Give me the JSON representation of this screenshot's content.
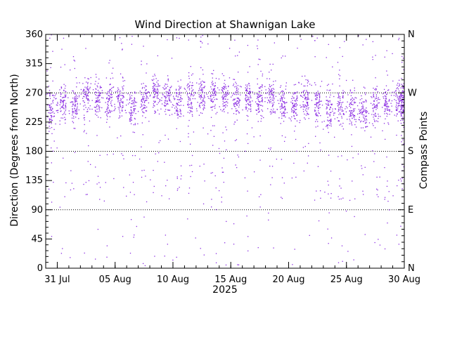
{
  "chart_data": {
    "type": "scatter",
    "title": "Wind Direction at Shawnigan Lake",
    "ylabel": "Direction (Degrees from North)",
    "y2label": "Compass Points",
    "xlabel_year": "2025",
    "x_range": [
      "2025-07-30",
      "2025-08-30"
    ],
    "ylim": [
      0,
      360
    ],
    "y_ticks": [
      "0",
      "45",
      "90",
      "135",
      "180",
      "225",
      "270",
      "315",
      "360"
    ],
    "x_ticks": [
      {
        "date": "2025-07-31",
        "label": "31 Jul"
      },
      {
        "date": "2025-08-05",
        "label": "05 Aug"
      },
      {
        "date": "2025-08-10",
        "label": "10 Aug"
      },
      {
        "date": "2025-08-15",
        "label": "15 Aug"
      },
      {
        "date": "2025-08-20",
        "label": "20 Aug"
      },
      {
        "date": "2025-08-25",
        "label": "25 Aug"
      },
      {
        "date": "2025-08-30",
        "label": "30 Aug"
      }
    ],
    "compass_points": [
      {
        "deg": 0,
        "label": "N"
      },
      {
        "deg": 90,
        "label": "E"
      },
      {
        "deg": 180,
        "label": "S"
      },
      {
        "deg": 270,
        "label": "W"
      },
      {
        "deg": 360,
        "label": "N"
      }
    ],
    "reference_lines_deg": [
      90,
      180,
      270
    ],
    "marker_color": "#8a2be2",
    "daily_mode_deg": [
      {
        "date": "2025-07-30",
        "deg": 245
      },
      {
        "date": "2025-07-31",
        "deg": 255
      },
      {
        "date": "2025-08-01",
        "deg": 250
      },
      {
        "date": "2025-08-02",
        "deg": 265
      },
      {
        "date": "2025-08-03",
        "deg": 260
      },
      {
        "date": "2025-08-04",
        "deg": 255
      },
      {
        "date": "2025-08-05",
        "deg": 262
      },
      {
        "date": "2025-08-06",
        "deg": 245
      },
      {
        "date": "2025-08-07",
        "deg": 260
      },
      {
        "date": "2025-08-08",
        "deg": 268
      },
      {
        "date": "2025-08-09",
        "deg": 262
      },
      {
        "date": "2025-08-10",
        "deg": 258
      },
      {
        "date": "2025-08-11",
        "deg": 262
      },
      {
        "date": "2025-08-12",
        "deg": 265
      },
      {
        "date": "2025-08-13",
        "deg": 268
      },
      {
        "date": "2025-08-14",
        "deg": 262
      },
      {
        "date": "2025-08-15",
        "deg": 258
      },
      {
        "date": "2025-08-16",
        "deg": 262
      },
      {
        "date": "2025-08-17",
        "deg": 258
      },
      {
        "date": "2025-08-18",
        "deg": 265
      },
      {
        "date": "2025-08-19",
        "deg": 255
      },
      {
        "date": "2025-08-20",
        "deg": 250
      },
      {
        "date": "2025-08-21",
        "deg": 258
      },
      {
        "date": "2025-08-22",
        "deg": 250
      },
      {
        "date": "2025-08-23",
        "deg": 245
      },
      {
        "date": "2025-08-24",
        "deg": 250
      },
      {
        "date": "2025-08-25",
        "deg": 245
      },
      {
        "date": "2025-08-26",
        "deg": 240
      },
      {
        "date": "2025-08-27",
        "deg": 250
      },
      {
        "date": "2025-08-28",
        "deg": 255
      },
      {
        "date": "2025-08-29",
        "deg": 255
      },
      {
        "date": "2025-08-30",
        "deg": 260
      }
    ]
  }
}
